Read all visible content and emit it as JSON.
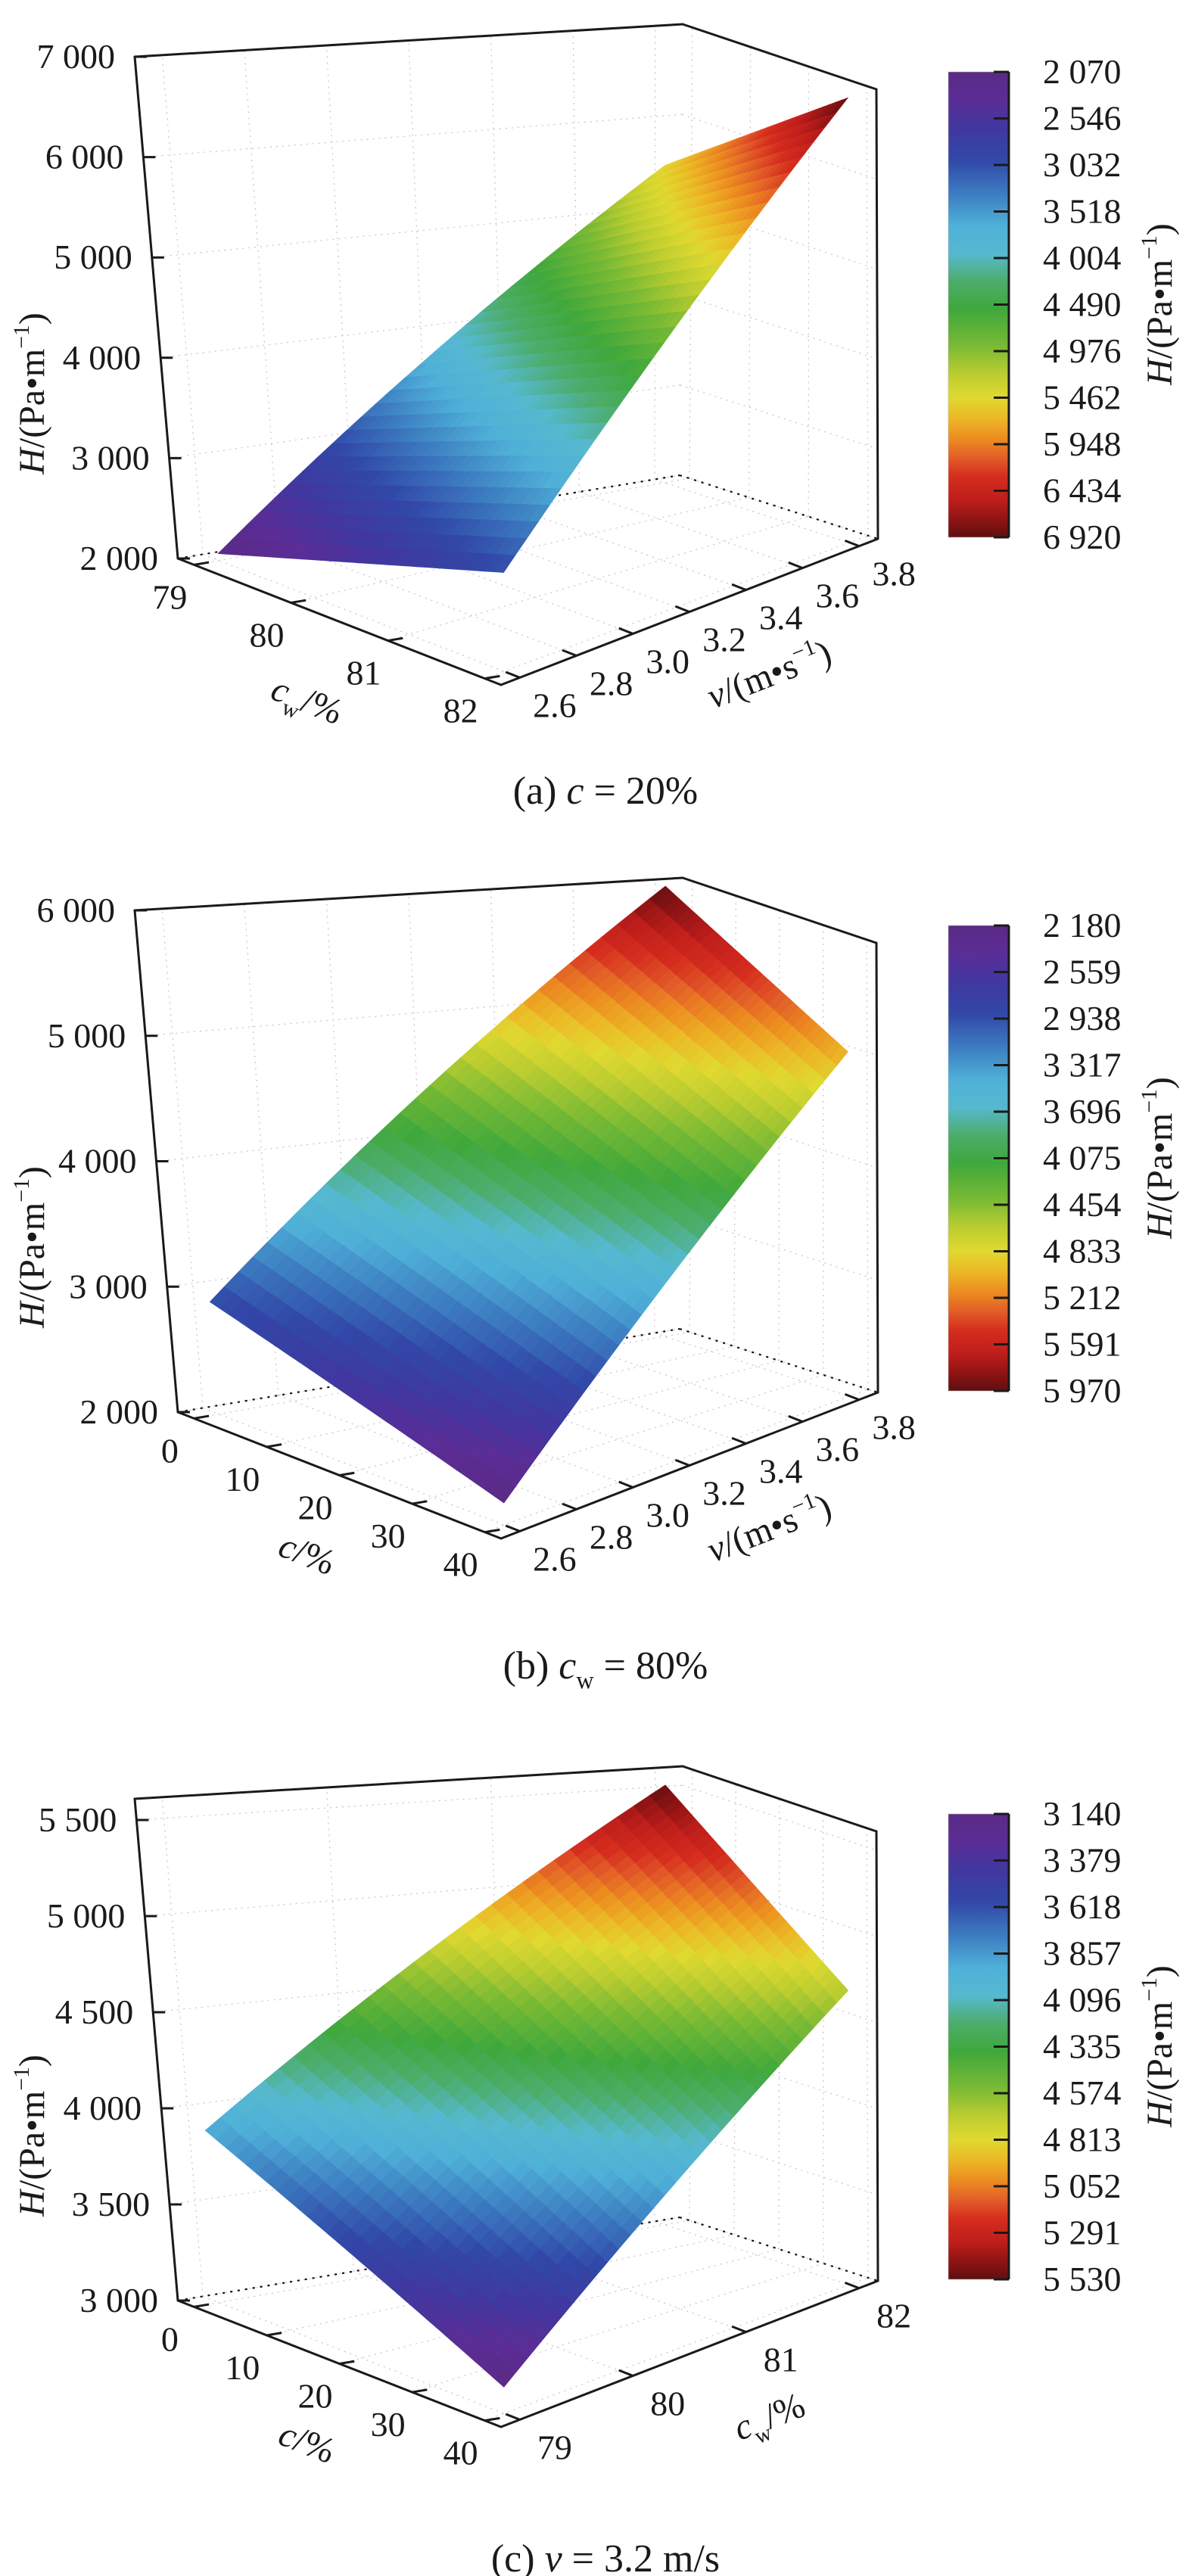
{
  "figure": {
    "background": "#ffffff",
    "text_color": "#1a1a1a"
  },
  "colormap": [
    [
      0.0,
      "#5a2a84"
    ],
    [
      0.06,
      "#5b2d96"
    ],
    [
      0.12,
      "#41379f"
    ],
    [
      0.19,
      "#3148a8"
    ],
    [
      0.26,
      "#3c7bc0"
    ],
    [
      0.33,
      "#4fb0d8"
    ],
    [
      0.39,
      "#56b9cf"
    ],
    [
      0.45,
      "#4cad6b"
    ],
    [
      0.51,
      "#3fa83c"
    ],
    [
      0.59,
      "#7aba34"
    ],
    [
      0.65,
      "#bccd30"
    ],
    [
      0.7,
      "#e0d930"
    ],
    [
      0.745,
      "#ecb726"
    ],
    [
      0.79,
      "#ec8a20"
    ],
    [
      0.83,
      "#e25c28"
    ],
    [
      0.87,
      "#d52d1e"
    ],
    [
      0.92,
      "#bf1e1b"
    ],
    [
      0.96,
      "#901414"
    ],
    [
      1.0,
      "#5e0f10"
    ]
  ],
  "chart_data": [
    {
      "type": "surface",
      "caption": "(a) *c* = 20%",
      "x_axis": {
        "title": "*c*_{w}/%",
        "min": 79,
        "max": 82,
        "ticks": [
          79,
          80,
          81,
          82
        ],
        "decimals": 0
      },
      "y_axis": {
        "title": "*v*/(m•s^{−1})",
        "min": 2.6,
        "max": 3.8,
        "ticks": [
          2.6,
          2.8,
          3.0,
          3.2,
          3.4,
          3.6,
          3.8
        ],
        "decimals": 1
      },
      "z_axis": {
        "title": "*H*/(Pa•m^{−1})",
        "min": 2000,
        "max": 7000,
        "ticks": [
          2000,
          3000,
          4000,
          5000,
          6000,
          7000
        ],
        "decimals": 0
      },
      "surface_corners": {
        "z_x0y0": 2070,
        "z_x1y0": 3000,
        "z_x0y1": 5500,
        "z_x1y1": 6920
      },
      "colorbar": {
        "title": "*H*/(Pa•m^{−1})",
        "min": 2070,
        "max": 6920,
        "tick_labels": [
          2070,
          2546,
          3032,
          3518,
          4004,
          4490,
          4976,
          5462,
          5948,
          6434,
          6920
        ]
      }
    },
    {
      "type": "surface",
      "caption": "(b) *c*_{w} = 80%",
      "x_axis": {
        "title": "*c*/%",
        "min": 0,
        "max": 40,
        "ticks": [
          0,
          10,
          20,
          30,
          40
        ],
        "decimals": 0
      },
      "y_axis": {
        "title": "*v*/(m•s^{−1})",
        "min": 2.6,
        "max": 3.8,
        "ticks": [
          2.6,
          2.8,
          3.0,
          3.2,
          3.4,
          3.6,
          3.8
        ],
        "decimals": 1
      },
      "z_axis": {
        "title": "*H*/(Pa•m^{−1})",
        "min": 2000,
        "max": 6000,
        "ticks": [
          2000,
          3000,
          4000,
          5000,
          6000
        ],
        "decimals": 0
      },
      "surface_corners": {
        "z_x0y0": 2900,
        "z_x1y0": 2180,
        "z_x0y1": 5970,
        "z_x1y1": 5050
      },
      "colorbar": {
        "title": "*H*/(Pa•m^{−1})",
        "min": 2180,
        "max": 5970,
        "tick_labels": [
          2180,
          2559,
          2938,
          3317,
          3696,
          4075,
          4454,
          4833,
          5212,
          5591,
          5970
        ]
      }
    },
    {
      "type": "surface",
      "caption": "(c) *v* = 3.2 m/s",
      "x_axis": {
        "title": "*c*/%",
        "min": 0,
        "max": 40,
        "ticks": [
          0,
          10,
          20,
          30,
          40
        ],
        "decimals": 0
      },
      "y_axis": {
        "title": "*c*_{w}/%",
        "min": 79,
        "max": 82,
        "ticks": [
          79,
          80,
          81,
          82
        ],
        "decimals": 0
      },
      "z_axis": {
        "title": "*H*/(Pa•m^{−1})",
        "min": 3000,
        "max": 5610,
        "ticks": [
          3000,
          3500,
          4000,
          4500,
          5000,
          5500
        ],
        "decimals": 0
      },
      "surface_corners": {
        "z_x0y0": 3900,
        "z_x1y0": 3140,
        "z_x0y1": 5530,
        "z_x1y1": 4700
      },
      "colorbar": {
        "title": "*H*/(Pa•m^{−1})",
        "min": 3140,
        "max": 5530,
        "tick_labels": [
          3140,
          3379,
          3618,
          3857,
          4096,
          4335,
          4574,
          4813,
          5052,
          5291,
          5530
        ]
      }
    }
  ]
}
